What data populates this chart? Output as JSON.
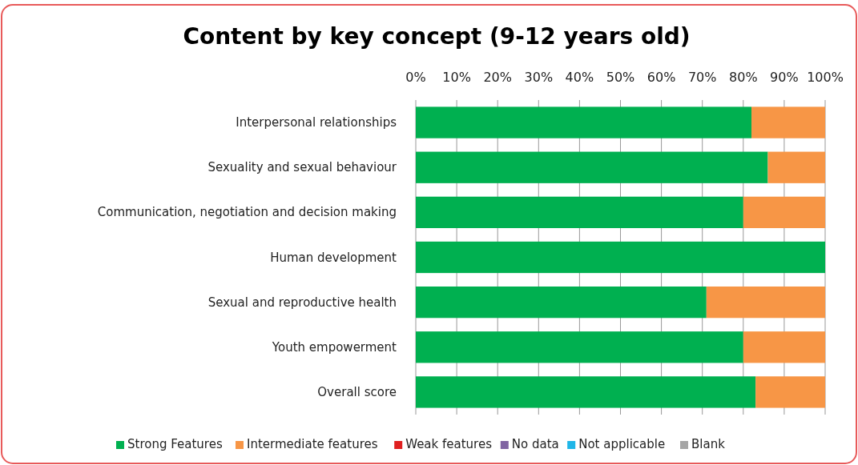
{
  "chart_data": {
    "type": "bar",
    "orientation": "horizontal",
    "stacked": true,
    "title": "Content by key concept (9-12 years old)",
    "categories": [
      "Interpersonal relationships",
      "Sexuality and sexual behaviour",
      "Communication, negotiation and decision making",
      "Human development",
      "Sexual and reproductive health",
      "Youth empowerment",
      "Overall score"
    ],
    "series": [
      {
        "name": "Strong Features",
        "color": "#00b050",
        "values": [
          82,
          86,
          80,
          100,
          71,
          80,
          83
        ]
      },
      {
        "name": "Intermediate features",
        "color": "#f79646",
        "values": [
          18,
          14,
          20,
          0,
          29,
          20,
          17
        ]
      },
      {
        "name": "Weak features",
        "color": "#e02020",
        "values": [
          0,
          0,
          0,
          0,
          0,
          0,
          0
        ]
      },
      {
        "name": "No data",
        "color": "#8064a2",
        "values": [
          0,
          0,
          0,
          0,
          0,
          0,
          0
        ]
      },
      {
        "name": "Not applicable",
        "color": "#1fb6e8",
        "values": [
          0,
          0,
          0,
          0,
          0,
          0,
          0
        ]
      },
      {
        "name": "Blank",
        "color": "#a5a5a5",
        "values": [
          0,
          0,
          0,
          0,
          0,
          0,
          0
        ]
      }
    ],
    "xlim": [
      0,
      100
    ],
    "xticks": [
      {
        "value": 0,
        "label": "0%"
      },
      {
        "value": 10,
        "label": "10%"
      },
      {
        "value": 20,
        "label": "20%"
      },
      {
        "value": 30,
        "label": "30%"
      },
      {
        "value": 40,
        "label": "40%"
      },
      {
        "value": 50,
        "label": "50%"
      },
      {
        "value": 60,
        "label": "60%"
      },
      {
        "value": 70,
        "label": "70%"
      },
      {
        "value": 80,
        "label": "80%"
      },
      {
        "value": 90,
        "label": "90%"
      },
      {
        "value": 100,
        "label": "100%"
      }
    ],
    "grid": "x",
    "legend": "bottom"
  }
}
